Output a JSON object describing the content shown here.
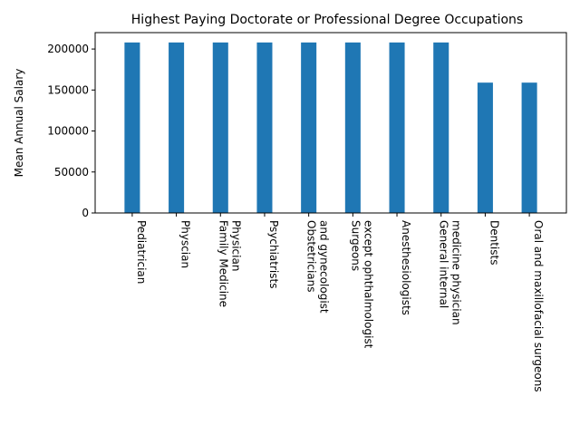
{
  "chart_data": {
    "type": "bar",
    "title": "Highest Paying Doctorate or Professional Degree Occupations",
    "xlabel": "",
    "ylabel": "Mean Annual Salary",
    "ylim": [
      0,
      220000
    ],
    "yticks": [
      0,
      50000,
      100000,
      150000,
      200000
    ],
    "grid": false,
    "bar_color": "#1f77b4",
    "categories": [
      "Pediatrician",
      "Physcian",
      "Family Medicine\nPhysician",
      "Psychiatrists",
      "Obstetricians\nand gynecologist",
      "Surgeons\nexcept ophthalmologist",
      "Anesthesiologists",
      "General internal\nmedicine physician",
      "Dentists",
      "Oral and maxillofacial surgeons"
    ],
    "values": [
      208000,
      208000,
      208000,
      208000,
      208000,
      208000,
      208000,
      208000,
      159000,
      159000
    ]
  }
}
